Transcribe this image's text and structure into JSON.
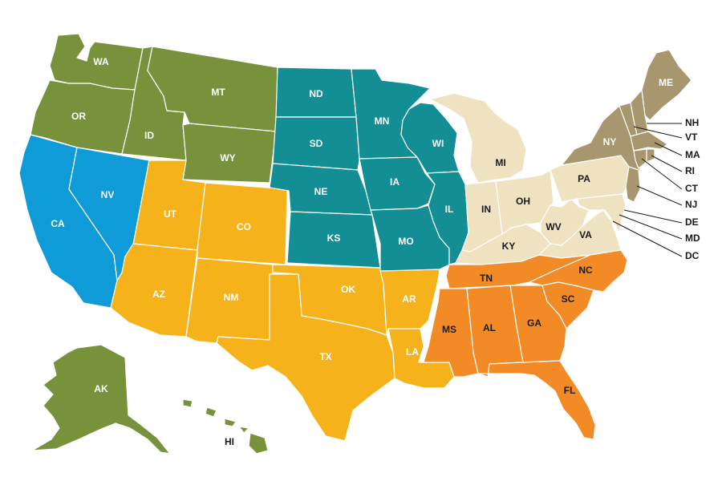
{
  "colors": {
    "west": "#77923b",
    "pacific_sw": "#0e9bd8",
    "mountain_sw": "#f5b21b",
    "midwest": "#128e94",
    "east_central": "#efe2c0",
    "northeast": "#a8976e",
    "southeast": "#f28a26"
  },
  "states": {
    "WA": "WA",
    "OR": "OR",
    "ID": "ID",
    "MT": "MT",
    "WY": "WY",
    "AK": "AK",
    "HI": "HI",
    "CA": "CA",
    "NV": "NV",
    "UT": "UT",
    "CO": "CO",
    "AZ": "AZ",
    "NM": "NM",
    "OK": "OK",
    "TX": "TX",
    "AR": "AR",
    "LA": "LA",
    "ND": "ND",
    "SD": "SD",
    "NE": "NE",
    "KS": "KS",
    "MN": "MN",
    "IA": "IA",
    "MO": "MO",
    "WI": "WI",
    "IL": "IL",
    "MI": "MI",
    "IN": "IN",
    "OH": "OH",
    "KY": "KY",
    "WV": "WV",
    "VA": "VA",
    "PA": "PA",
    "TN": "TN",
    "NC": "NC",
    "SC": "SC",
    "GA": "GA",
    "AL": "AL",
    "MS": "MS",
    "FL": "FL",
    "NY": "NY",
    "ME": "ME"
  },
  "callouts": [
    "NH",
    "VT",
    "MA",
    "RI",
    "CT",
    "NJ",
    "DE",
    "MD",
    "DC"
  ]
}
